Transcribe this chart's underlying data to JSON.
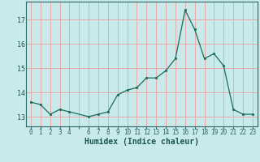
{
  "x": [
    0,
    1,
    2,
    3,
    4,
    6,
    7,
    8,
    9,
    10,
    11,
    12,
    13,
    14,
    15,
    16,
    17,
    18,
    19,
    20,
    21,
    22,
    23
  ],
  "y": [
    13.6,
    13.5,
    13.1,
    13.3,
    13.2,
    13.0,
    13.1,
    13.2,
    13.9,
    14.1,
    14.2,
    14.6,
    14.6,
    14.9,
    15.4,
    17.4,
    16.6,
    15.4,
    15.6,
    15.1,
    13.3,
    13.1,
    13.1
  ],
  "xlabel": "Humidex (Indice chaleur)",
  "bg_color": "#c8eaea",
  "grid_color": "#e8aaaa",
  "line_color": "#1a6b5a",
  "marker_color": "#1a6b5a",
  "axis_color": "#336666",
  "tick_label_color": "#1a5555",
  "xlabel_color": "#1a5555",
  "yticks": [
    13,
    14,
    15,
    16,
    17
  ],
  "xlim": [
    -0.5,
    23.5
  ],
  "ylim": [
    12.6,
    17.75
  ]
}
